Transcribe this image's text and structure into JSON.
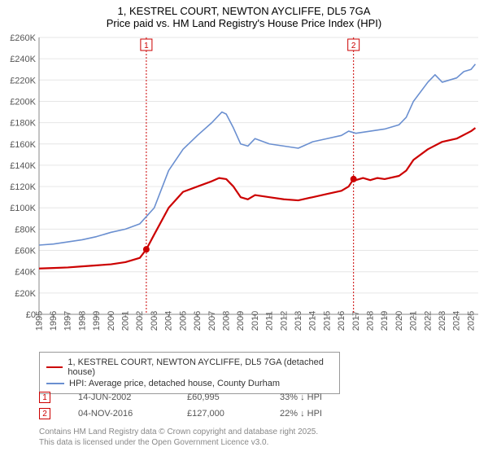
{
  "title_main": "1, KESTREL COURT, NEWTON AYCLIFFE, DL5 7GA",
  "title_sub": "Price paid vs. HM Land Registry's House Price Index (HPI)",
  "chart": {
    "type": "line",
    "xlim": [
      1995,
      2025.5
    ],
    "ylim": [
      0,
      260000
    ],
    "ytick_step": 20000,
    "xtick_step": 1,
    "background_color": "#ffffff",
    "grid_color": "#e6e6e6",
    "axis_color": "#888888",
    "label_fontsize": 11,
    "series": [
      {
        "name": "property",
        "color": "#cc0000",
        "width": 2.2,
        "label": "1, KESTREL COURT, NEWTON AYCLIFFE, DL5 7GA (detached house)",
        "data": [
          [
            1995,
            43000
          ],
          [
            1996,
            43500
          ],
          [
            1997,
            44000
          ],
          [
            1998,
            45000
          ],
          [
            1999,
            46000
          ],
          [
            2000,
            47000
          ],
          [
            2001,
            49000
          ],
          [
            2002,
            53000
          ],
          [
            2002.45,
            60995
          ],
          [
            2003,
            75000
          ],
          [
            2004,
            100000
          ],
          [
            2005,
            115000
          ],
          [
            2006,
            120000
          ],
          [
            2007,
            125000
          ],
          [
            2007.5,
            128000
          ],
          [
            2008,
            127000
          ],
          [
            2008.5,
            120000
          ],
          [
            2009,
            110000
          ],
          [
            2009.5,
            108000
          ],
          [
            2010,
            112000
          ],
          [
            2011,
            110000
          ],
          [
            2012,
            108000
          ],
          [
            2013,
            107000
          ],
          [
            2014,
            110000
          ],
          [
            2015,
            113000
          ],
          [
            2016,
            116000
          ],
          [
            2016.5,
            120000
          ],
          [
            2016.84,
            127000
          ],
          [
            2017,
            126000
          ],
          [
            2017.5,
            128000
          ],
          [
            2018,
            126000
          ],
          [
            2018.5,
            128000
          ],
          [
            2019,
            127000
          ],
          [
            2020,
            130000
          ],
          [
            2020.5,
            135000
          ],
          [
            2021,
            145000
          ],
          [
            2022,
            155000
          ],
          [
            2023,
            162000
          ],
          [
            2024,
            165000
          ],
          [
            2025,
            172000
          ],
          [
            2025.3,
            175000
          ]
        ]
      },
      {
        "name": "hpi",
        "color": "#6a8fd0",
        "width": 1.6,
        "label": "HPI: Average price, detached house, County Durham",
        "data": [
          [
            1995,
            65000
          ],
          [
            1996,
            66000
          ],
          [
            1997,
            68000
          ],
          [
            1998,
            70000
          ],
          [
            1999,
            73000
          ],
          [
            2000,
            77000
          ],
          [
            2001,
            80000
          ],
          [
            2002,
            85000
          ],
          [
            2003,
            100000
          ],
          [
            2004,
            135000
          ],
          [
            2005,
            155000
          ],
          [
            2006,
            168000
          ],
          [
            2007,
            180000
          ],
          [
            2007.7,
            190000
          ],
          [
            2008,
            188000
          ],
          [
            2008.5,
            175000
          ],
          [
            2009,
            160000
          ],
          [
            2009.5,
            158000
          ],
          [
            2010,
            165000
          ],
          [
            2011,
            160000
          ],
          [
            2012,
            158000
          ],
          [
            2013,
            156000
          ],
          [
            2014,
            162000
          ],
          [
            2015,
            165000
          ],
          [
            2016,
            168000
          ],
          [
            2016.5,
            172000
          ],
          [
            2017,
            170000
          ],
          [
            2018,
            172000
          ],
          [
            2019,
            174000
          ],
          [
            2020,
            178000
          ],
          [
            2020.5,
            185000
          ],
          [
            2021,
            200000
          ],
          [
            2022,
            218000
          ],
          [
            2022.5,
            225000
          ],
          [
            2023,
            218000
          ],
          [
            2024,
            222000
          ],
          [
            2024.5,
            228000
          ],
          [
            2025,
            230000
          ],
          [
            2025.3,
            235000
          ]
        ]
      }
    ],
    "sale_markers": [
      {
        "n": 1,
        "x": 2002.45,
        "y": 60995,
        "color": "#cc0000"
      },
      {
        "n": 2,
        "x": 2016.84,
        "y": 127000,
        "color": "#cc0000"
      }
    ]
  },
  "legend": {
    "items": [
      {
        "color": "#cc0000",
        "label": "1, KESTREL COURT, NEWTON AYCLIFFE, DL5 7GA (detached house)"
      },
      {
        "color": "#6a8fd0",
        "label": "HPI: Average price, detached house, County Durham"
      }
    ]
  },
  "markers_table": {
    "rows": [
      {
        "n": "1",
        "date": "14-JUN-2002",
        "price": "£60,995",
        "delta": "33% ↓ HPI",
        "border": "#cc0000"
      },
      {
        "n": "2",
        "date": "04-NOV-2016",
        "price": "£127,000",
        "delta": "22% ↓ HPI",
        "border": "#cc0000"
      }
    ]
  },
  "footer": {
    "line1": "Contains HM Land Registry data © Crown copyright and database right 2025.",
    "line2": "This data is licensed under the Open Government Licence v3.0."
  }
}
